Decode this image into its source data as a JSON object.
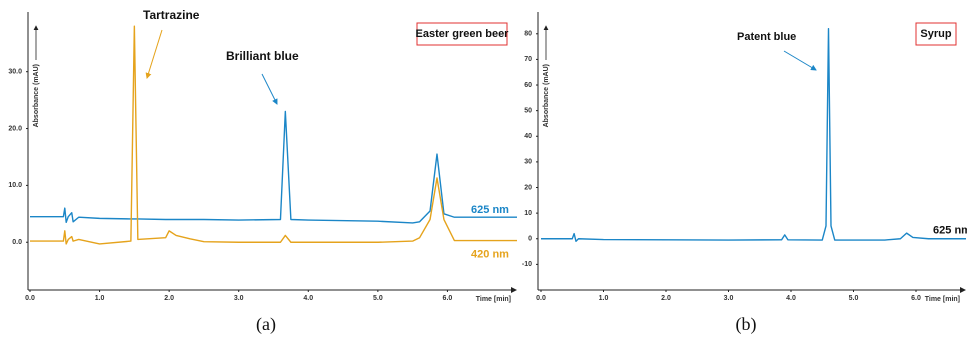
{
  "chart_data": [
    {
      "type": "line",
      "title": "Easter green beer",
      "caption": "(a)",
      "xlabel": "Time [min]",
      "ylabel": "Absorbance (mAU)",
      "annotations": [
        "Tartrazine",
        "Brilliant blue"
      ],
      "x": [
        0,
        0.48,
        0.5,
        0.52,
        0.55,
        0.6,
        0.62,
        0.7,
        1.0,
        1.45,
        1.5,
        1.55,
        1.95,
        2.0,
        2.1,
        2.3,
        2.5,
        3.0,
        3.6,
        3.67,
        3.75,
        4.0,
        5.0,
        5.5,
        5.6,
        5.75,
        5.85,
        5.95,
        6.1,
        7.0
      ],
      "series": [
        {
          "name": "625 nm",
          "color": "#1b86c7",
          "values": [
            4.5,
            4.5,
            6.0,
            3.5,
            4.5,
            5.2,
            3.6,
            4.4,
            4.2,
            4.1,
            4.1,
            4.1,
            4.0,
            4.0,
            4.0,
            4.0,
            4.0,
            3.9,
            4.0,
            23,
            4.0,
            3.9,
            3.7,
            3.4,
            3.6,
            5.5,
            15.5,
            5.0,
            4.4,
            4.4
          ]
        },
        {
          "name": "420 nm",
          "color": "#e5a31c",
          "values": [
            0.2,
            0.2,
            2.0,
            -0.3,
            0.5,
            1.0,
            0.2,
            0.5,
            -0.3,
            0.2,
            38,
            0.5,
            0.8,
            2.0,
            1.2,
            0.6,
            0.1,
            0,
            0,
            1.2,
            0,
            0,
            0,
            0.2,
            0.8,
            4,
            11.3,
            4,
            0.3,
            0.3
          ]
        }
      ],
      "xlim": [
        0,
        7
      ],
      "ylim": [
        -8.4,
        40.5
      ],
      "xticks": [
        {
          "value": 0,
          "label": "0.0"
        },
        {
          "value": 1,
          "label": "1.0"
        },
        {
          "value": 2,
          "label": "2.0"
        },
        {
          "value": 3,
          "label": "3.0"
        },
        {
          "value": 4,
          "label": "4.0"
        },
        {
          "value": 5,
          "label": "5.0"
        },
        {
          "value": 6,
          "label": "6.0"
        }
      ],
      "yticks": [
        {
          "value": 0,
          "label": "0.0"
        },
        {
          "value": 10,
          "label": "10.0"
        },
        {
          "value": 20,
          "label": "20.0"
        },
        {
          "value": 30,
          "label": "30.0"
        }
      ],
      "grid": false
    },
    {
      "type": "line",
      "title": "Syrup",
      "caption": "(b)",
      "xlabel": "Time [min]",
      "ylabel": "Absorbance (mAU)",
      "annotations": [
        "Patent blue"
      ],
      "x": [
        0,
        0.5,
        0.53,
        0.56,
        0.6,
        1.0,
        3.0,
        3.85,
        3.9,
        3.95,
        4.5,
        4.56,
        4.6,
        4.64,
        4.7,
        5.5,
        5.75,
        5.85,
        5.95,
        6.2,
        6.8
      ],
      "series": [
        {
          "name": "625 nm",
          "color": "#1b86c7",
          "values": [
            0,
            0,
            2,
            -1,
            0,
            -0.3,
            -0.5,
            -0.4,
            1.5,
            -0.4,
            -0.5,
            5,
            82,
            5,
            -0.5,
            -0.5,
            0,
            2.2,
            0.5,
            0,
            0
          ]
        }
      ],
      "xlim": [
        0,
        6.8
      ],
      "ylim": [
        -20,
        88.5
      ],
      "xticks": [
        {
          "value": 0,
          "label": "0.0"
        },
        {
          "value": 1,
          "label": "1.0"
        },
        {
          "value": 2,
          "label": "2.0"
        },
        {
          "value": 3,
          "label": "3.0"
        },
        {
          "value": 4,
          "label": "4.0"
        },
        {
          "value": 5,
          "label": "5.0"
        },
        {
          "value": 6,
          "label": "6.0"
        }
      ],
      "yticks": [
        -10,
        0,
        10,
        20,
        30,
        40,
        50,
        60,
        70,
        80
      ],
      "grid": false
    }
  ]
}
